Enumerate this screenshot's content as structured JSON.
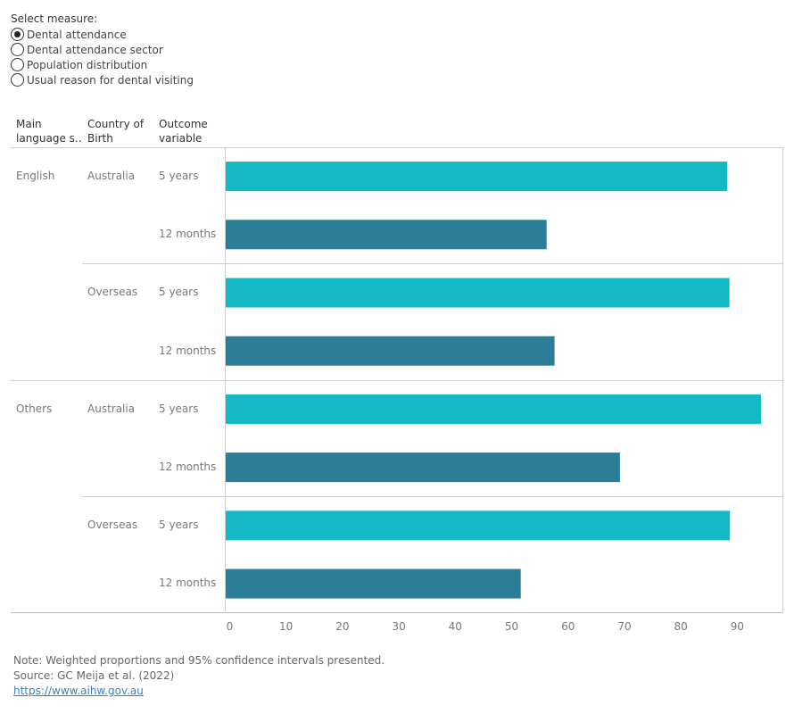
{
  "measure": {
    "title": "Select measure:",
    "options": [
      {
        "label": "Dental attendance",
        "selected": true
      },
      {
        "label": "Dental attendance sector",
        "selected": false
      },
      {
        "label": "Population distribution",
        "selected": false
      },
      {
        "label": "Usual reason for dental visiting",
        "selected": false
      }
    ]
  },
  "headers": {
    "col1": [
      "Main",
      "language s.."
    ],
    "col2": [
      "Country of",
      "Birth"
    ],
    "col3": [
      "Outcome",
      "variable"
    ]
  },
  "groups": {
    "english": "English",
    "others": "Others",
    "australia": "Australia",
    "overseas": "Overseas"
  },
  "outcomes": {
    "five_years": "5 years",
    "twelve_months": "12 months"
  },
  "colors": {
    "five_years": "#14b8c4",
    "twelve_months": "#2b7d98"
  },
  "chart_data": {
    "type": "bar",
    "orientation": "horizontal",
    "categories": [
      [
        "English",
        "Australia",
        "5 years"
      ],
      [
        "English",
        "Australia",
        "12 months"
      ],
      [
        "English",
        "Overseas",
        "5 years"
      ],
      [
        "English",
        "Overseas",
        "12 months"
      ],
      [
        "Others",
        "Australia",
        "5 years"
      ],
      [
        "Others",
        "Australia",
        "12 months"
      ],
      [
        "Others",
        "Overseas",
        "5 years"
      ],
      [
        "Others",
        "Overseas",
        "12 months"
      ]
    ],
    "values": [
      88.2,
      56.2,
      88.6,
      57.6,
      94.2,
      69.2,
      88.7,
      51.6
    ],
    "xlim": [
      -0.7,
      98
    ],
    "xticks": [
      "0",
      "10",
      "20",
      "30",
      "40",
      "50",
      "60",
      "70",
      "80",
      "90"
    ],
    "xtick_values": [
      0,
      10,
      20,
      30,
      40,
      50,
      60,
      70,
      80,
      90
    ],
    "grid": false
  },
  "notes": {
    "note": "Note: Weighted proportions and 95% confidence intervals presented.",
    "source": "Source: GC Meija et al. (2022)",
    "link": "https://www.aihw.gov.au"
  }
}
